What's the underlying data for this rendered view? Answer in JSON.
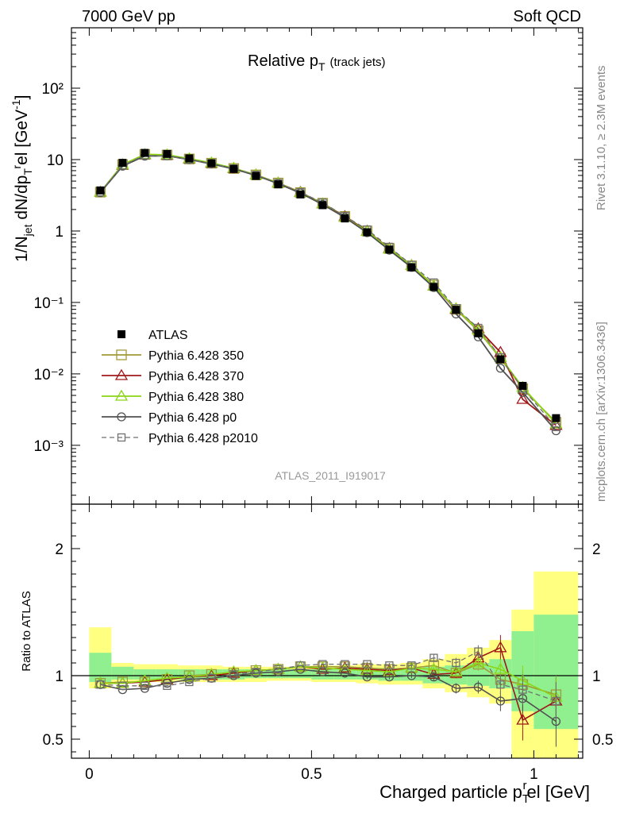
{
  "header": {
    "left": "7000 GeV pp",
    "right": "Soft QCD"
  },
  "side": {
    "rivet": "Rivet 3.1.10, ≥ 2.3M events",
    "mcplots": "mcplots.cern.ch [arXiv:1306.3436]"
  },
  "analysis_id": "ATLAS_2011_I919017",
  "chart_data": [
    {
      "type": "scatter",
      "title": "Relative p_T (track jets)",
      "title_main": "Relative p",
      "title_sub": "T",
      "title_note": "(track jets)",
      "ylabel": "1/N_jet dN/dp_T^rel [GeV^-1]",
      "yscale": "log",
      "xlim": [
        -0.04,
        1.11
      ],
      "ylim": [
        0.00015,
        700
      ],
      "ytick_labels": [
        "10⁻³",
        "10⁻²",
        "10⁻¹",
        "1",
        "10",
        "10²"
      ],
      "legend_placement": "lower-left",
      "x": [
        0.025,
        0.075,
        0.125,
        0.175,
        0.225,
        0.275,
        0.325,
        0.375,
        0.425,
        0.475,
        0.525,
        0.575,
        0.625,
        0.675,
        0.725,
        0.775,
        0.825,
        0.875,
        0.925,
        0.975,
        1.05
      ],
      "series": [
        {
          "name": "ATLAS",
          "color": "#000000",
          "marker": "filled-square",
          "line": "none",
          "values": [
            3.7,
            9.0,
            12.4,
            12.0,
            10.4,
            8.9,
            7.4,
            5.9,
            4.5,
            3.25,
            2.3,
            1.5,
            0.96,
            0.55,
            0.31,
            0.165,
            0.079,
            0.037,
            0.016,
            0.0068,
            0.0024
          ]
        },
        {
          "name": "Pythia 6.428 350",
          "color": "#a09a38",
          "marker": "open-square",
          "line": "solid",
          "values": [
            3.5,
            8.5,
            11.8,
            11.6,
            10.2,
            8.9,
            7.5,
            6.1,
            4.7,
            3.45,
            2.45,
            1.6,
            1.0,
            0.57,
            0.325,
            0.175,
            0.08,
            0.04,
            0.0165,
            0.0062,
            0.0021
          ]
        },
        {
          "name": "Pythia 6.428 370",
          "color": "#a01818",
          "marker": "open-triangle",
          "line": "solid",
          "values": [
            3.5,
            8.4,
            11.7,
            11.5,
            10.2,
            8.9,
            7.5,
            6.1,
            4.7,
            3.5,
            2.4,
            1.6,
            1.0,
            0.57,
            0.33,
            0.17,
            0.08,
            0.043,
            0.02,
            0.0044,
            0.0019
          ]
        },
        {
          "name": "Pythia 6.428 380",
          "color": "#8cd616",
          "marker": "open-triangle",
          "line": "solid",
          "values": [
            3.5,
            8.5,
            11.8,
            11.7,
            10.3,
            9.0,
            7.6,
            6.1,
            4.7,
            3.45,
            2.4,
            1.55,
            0.99,
            0.56,
            0.33,
            0.17,
            0.082,
            0.041,
            0.017,
            0.0065,
            0.002
          ]
        },
        {
          "name": "Pythia 6.428 p0",
          "color": "#505050",
          "marker": "open-circle",
          "line": "solid",
          "values": [
            3.45,
            8.1,
            11.2,
            11.3,
            10.0,
            8.7,
            7.4,
            6.0,
            4.6,
            3.4,
            2.35,
            1.55,
            0.95,
            0.54,
            0.31,
            0.162,
            0.069,
            0.033,
            0.012,
            0.0055,
            0.0016
          ]
        },
        {
          "name": "Pythia 6.428 p2010",
          "color": "#707070",
          "marker": "open-square-small",
          "line": "dashed",
          "values": [
            3.5,
            8.3,
            11.5,
            11.2,
            10.0,
            8.8,
            7.5,
            6.1,
            4.7,
            3.5,
            2.5,
            1.62,
            1.05,
            0.6,
            0.335,
            0.19,
            0.083,
            0.044,
            0.017,
            0.0062,
            0.0018
          ]
        }
      ],
      "uncertainty": {
        "inner": [
          0.2,
          0.06,
          0.05,
          0.05,
          0.05,
          0.05,
          0.04,
          0.04,
          0.04,
          0.04,
          0.04,
          0.05,
          0.05,
          0.06,
          0.06,
          0.08,
          0.09,
          0.1,
          0.13,
          0.35,
          0.45
        ],
        "outer": [
          0.4,
          0.1,
          0.09,
          0.08,
          0.07,
          0.07,
          0.06,
          0.06,
          0.06,
          0.06,
          0.07,
          0.07,
          0.08,
          0.09,
          0.1,
          0.13,
          0.16,
          0.2,
          0.26,
          0.65,
          0.8
        ]
      }
    },
    {
      "type": "scatter",
      "title": "",
      "xlabel": "Charged particle p_T^rel [GeV]",
      "xlabel_main": "Charged particle p",
      "xlabel_sub": "T",
      "xlabel_sup": "r",
      "xlabel_tail": "el [GeV]",
      "ylabel": "Ratio to ATLAS",
      "xlim": [
        -0.04,
        1.11
      ],
      "ylim": [
        0.35,
        2.35
      ],
      "xtick_labels": [
        "0",
        "0.5",
        "1"
      ],
      "ytick_labels": [
        "0.5",
        "1",
        "2"
      ],
      "x_bins": [
        [
          0.0,
          0.05
        ],
        [
          0.05,
          0.1
        ],
        [
          0.1,
          0.15
        ],
        [
          0.15,
          0.2
        ],
        [
          0.2,
          0.25
        ],
        [
          0.25,
          0.3
        ],
        [
          0.3,
          0.35
        ],
        [
          0.35,
          0.4
        ],
        [
          0.4,
          0.45
        ],
        [
          0.45,
          0.5
        ],
        [
          0.5,
          0.55
        ],
        [
          0.55,
          0.6
        ],
        [
          0.6,
          0.65
        ],
        [
          0.65,
          0.7
        ],
        [
          0.7,
          0.75
        ],
        [
          0.75,
          0.8
        ],
        [
          0.8,
          0.85
        ],
        [
          0.85,
          0.9
        ],
        [
          0.9,
          0.95
        ],
        [
          0.95,
          1.0
        ],
        [
          1.0,
          1.1
        ]
      ],
      "band_inner": [
        [
          0.95,
          1.18
        ],
        [
          0.97,
          1.07
        ],
        [
          0.97,
          1.05
        ],
        [
          0.97,
          1.05
        ],
        [
          0.97,
          1.05
        ],
        [
          0.97,
          1.05
        ],
        [
          0.97,
          1.05
        ],
        [
          0.98,
          1.05
        ],
        [
          0.98,
          1.05
        ],
        [
          0.98,
          1.05
        ],
        [
          0.97,
          1.05
        ],
        [
          0.97,
          1.06
        ],
        [
          0.97,
          1.06
        ],
        [
          0.96,
          1.06
        ],
        [
          0.96,
          1.06
        ],
        [
          0.94,
          1.07
        ],
        [
          0.93,
          1.08
        ],
        [
          0.92,
          1.1
        ],
        [
          0.9,
          1.13
        ],
        [
          0.72,
          1.35
        ],
        [
          0.58,
          1.48
        ]
      ],
      "band_outer": [
        [
          0.9,
          1.38
        ],
        [
          0.95,
          1.1
        ],
        [
          0.95,
          1.09
        ],
        [
          0.95,
          1.09
        ],
        [
          0.95,
          1.08
        ],
        [
          0.95,
          1.08
        ],
        [
          0.95,
          1.07
        ],
        [
          0.95,
          1.07
        ],
        [
          0.96,
          1.07
        ],
        [
          0.96,
          1.07
        ],
        [
          0.95,
          1.08
        ],
        [
          0.95,
          1.08
        ],
        [
          0.94,
          1.09
        ],
        [
          0.93,
          1.09
        ],
        [
          0.93,
          1.1
        ],
        [
          0.9,
          1.13
        ],
        [
          0.87,
          1.17
        ],
        [
          0.83,
          1.22
        ],
        [
          0.78,
          1.28
        ],
        [
          0.35,
          1.52
        ],
        [
          0.35,
          1.82
        ]
      ],
      "series": [
        {
          "name": "Pythia 6.428 350",
          "values": [
            0.94,
            0.95,
            0.95,
            0.97,
            1.0,
            1.01,
            1.02,
            1.04,
            1.05,
            1.07,
            1.07,
            1.07,
            1.06,
            1.05,
            1.06,
            1.08,
            1.02,
            1.09,
            0.97,
            0.93,
            0.85
          ],
          "err": [
            0.02,
            0.01,
            0.01,
            0.01,
            0.01,
            0.01,
            0.01,
            0.01,
            0.01,
            0.01,
            0.01,
            0.01,
            0.02,
            0.02,
            0.02,
            0.03,
            0.04,
            0.05,
            0.08,
            0.12,
            0.15
          ]
        },
        {
          "name": "Pythia 6.428 370",
          "values": [
            0.94,
            0.94,
            0.95,
            0.97,
            0.99,
            1.0,
            1.02,
            1.04,
            1.05,
            1.07,
            1.05,
            1.06,
            1.05,
            1.04,
            1.06,
            1.01,
            1.02,
            1.14,
            1.22,
            0.65,
            0.8
          ],
          "err": [
            0.02,
            0.01,
            0.01,
            0.01,
            0.01,
            0.01,
            0.01,
            0.01,
            0.01,
            0.01,
            0.01,
            0.01,
            0.02,
            0.02,
            0.02,
            0.03,
            0.04,
            0.06,
            0.1,
            0.16,
            0.18
          ]
        },
        {
          "name": "Pythia 6.428 380",
          "values": [
            0.94,
            0.94,
            0.96,
            0.98,
            0.99,
            1.01,
            1.03,
            1.04,
            1.05,
            1.07,
            1.06,
            1.05,
            1.04,
            1.03,
            1.06,
            1.05,
            1.03,
            1.1,
            1.05,
            0.96,
            0.83
          ],
          "err": [
            0.02,
            0.01,
            0.01,
            0.01,
            0.01,
            0.01,
            0.01,
            0.01,
            0.01,
            0.01,
            0.01,
            0.01,
            0.02,
            0.02,
            0.02,
            0.03,
            0.04,
            0.05,
            0.08,
            0.12,
            0.15
          ]
        },
        {
          "name": "Pythia 6.428 p0",
          "values": [
            0.93,
            0.89,
            0.9,
            0.94,
            0.97,
            0.98,
            1.0,
            1.02,
            1.03,
            1.05,
            1.03,
            1.02,
            0.99,
            0.99,
            1.0,
            0.99,
            0.9,
            0.91,
            0.8,
            0.82,
            0.64
          ],
          "err": [
            0.02,
            0.01,
            0.01,
            0.01,
            0.01,
            0.01,
            0.01,
            0.01,
            0.01,
            0.01,
            0.01,
            0.01,
            0.02,
            0.02,
            0.02,
            0.03,
            0.04,
            0.05,
            0.08,
            0.12,
            0.2
          ]
        },
        {
          "name": "Pythia 6.428 p2010",
          "values": [
            0.93,
            0.92,
            0.92,
            0.92,
            0.95,
            0.98,
            1.01,
            1.03,
            1.05,
            1.08,
            1.09,
            1.09,
            1.09,
            1.08,
            1.08,
            1.14,
            1.1,
            1.19,
            0.93,
            0.89,
            0.8
          ],
          "err": [
            0.02,
            0.01,
            0.01,
            0.01,
            0.01,
            0.01,
            0.01,
            0.01,
            0.01,
            0.01,
            0.01,
            0.01,
            0.02,
            0.02,
            0.02,
            0.03,
            0.04,
            0.05,
            0.08,
            0.12,
            0.15
          ]
        }
      ]
    }
  ]
}
